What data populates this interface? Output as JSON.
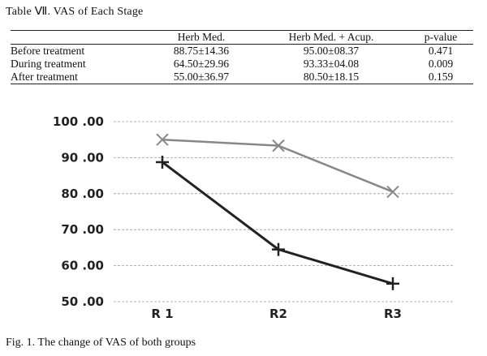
{
  "table": {
    "title": "Table Ⅶ. VAS of Each Stage",
    "headers": [
      "",
      "Herb Med.",
      "Herb Med. + Acup.",
      "p-value"
    ],
    "rows": [
      [
        "Before treatment",
        "88.75±14.36",
        "95.00±08.37",
        "0.471"
      ],
      [
        "During treatment",
        "64.50±29.96",
        "93.33±04.08",
        "0.009"
      ],
      [
        "After treatment",
        "55.00±36.97",
        "80.50±18.15",
        "0.159"
      ]
    ]
  },
  "caption": "Fig. 1. The change of VAS of both groups",
  "chart_data": {
    "type": "line",
    "categories": [
      "R 1",
      "R2",
      "R3"
    ],
    "y_tick_labels": [
      "100 .00",
      "90 .00",
      "80 .00",
      "70 .00",
      "60 .00",
      "50 .00"
    ],
    "y_ticks": [
      100,
      90,
      80,
      70,
      60,
      50
    ],
    "ylim": [
      50,
      100
    ],
    "grid": true,
    "series": [
      {
        "values": [
          95.0,
          93.33,
          80.5
        ],
        "marker": "x",
        "color": "#888888"
      },
      {
        "values": [
          88.75,
          64.5,
          55.0
        ],
        "marker": "+",
        "color": "#222222"
      }
    ]
  }
}
